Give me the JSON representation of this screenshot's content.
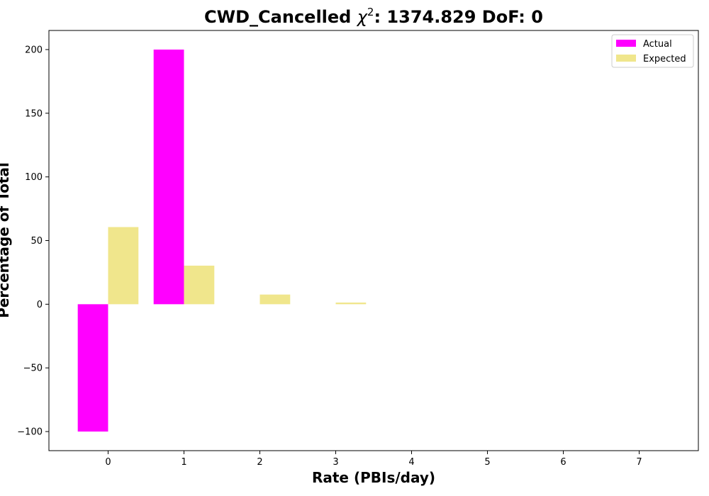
{
  "chart_data": {
    "type": "bar",
    "title_prefix": "CWD_Cancelled ",
    "title_chi": "χ",
    "title_sup": "2",
    "title_suffix": ": 1374.829 DoF: 0",
    "xlabel": "Rate (PBIs/day)",
    "ylabel": "Percentage of Total",
    "categories": [
      "0",
      "1",
      "2",
      "3",
      "4",
      "5",
      "6",
      "7"
    ],
    "x_ticks": [
      0,
      1,
      2,
      3,
      4,
      5,
      6,
      7
    ],
    "y_ticks": [
      -100,
      -50,
      0,
      50,
      100,
      150,
      200
    ],
    "y_tick_labels": [
      "−100",
      "−50",
      "0",
      "50",
      "100",
      "150",
      "200"
    ],
    "xlim": [
      -0.78,
      7.78
    ],
    "ylim": [
      -115,
      215
    ],
    "series": [
      {
        "name": "Actual",
        "color": "#ff00ff",
        "values": [
          -100,
          200,
          0,
          0,
          0,
          0,
          0,
          0
        ]
      },
      {
        "name": "Expected",
        "color": "#f0e68c",
        "values": [
          60.6,
          30.3,
          7.6,
          1.3,
          0,
          0,
          0,
          0
        ]
      }
    ],
    "legend_position": "top-right",
    "grid": false
  }
}
